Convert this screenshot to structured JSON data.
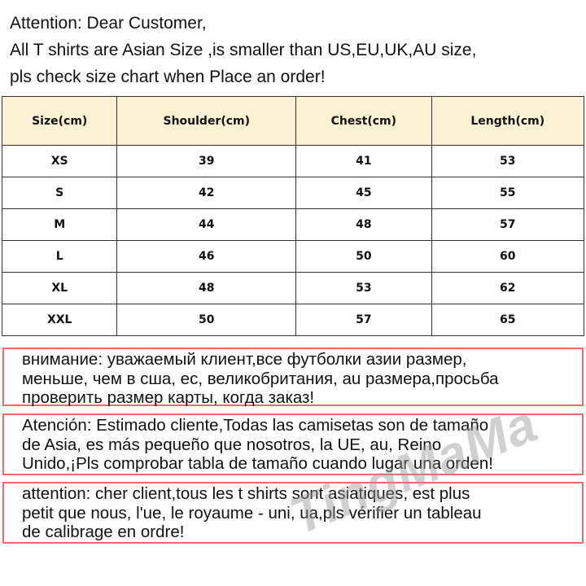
{
  "intro": {
    "lines": [
      "Attention: Dear Customer,",
      "All T shirts are  Asian Size ,is smaller than US,EU,UK,AU size,",
      "pls check size chart when Place an order!"
    ]
  },
  "table": {
    "headers": [
      "Size(cm)",
      "Shoulder(cm)",
      "Chest(cm)",
      "Length(cm)"
    ],
    "rows": [
      [
        "XS",
        "39",
        "41",
        "53"
      ],
      [
        "S",
        "42",
        "45",
        "55"
      ],
      [
        "M",
        "44",
        "48",
        "57"
      ],
      [
        "L",
        "46",
        "50",
        "60"
      ],
      [
        "XL",
        "48",
        "53",
        "62"
      ],
      [
        "XXL",
        "50",
        "57",
        "65"
      ]
    ],
    "header_color": "#fdf1d4"
  },
  "notes": [
    {
      "lines": [
        "внимание: уважаемый клиент,все футболки азии размер,",
        "меньше, чем в сша, ес, великобритания, au размера,просьба",
        "проверить размер карты, когда заказ!"
      ]
    },
    {
      "lines": [
        "Atención: Estimado cliente,Todas las camisetas son de tamaño",
        "de Asia, es más pequeño que nosotros, la UE, au, Reino",
        "Unido,¡Pls comprobar tabla de tamaño cuando lugar una orden!"
      ]
    },
    {
      "lines": [
        "attention: cher client,tous les t shirts sont asiatiques, est plus",
        "petit que nous, l'ue, le royaume - uni, ua,pls vérifier un tableau",
        "de calibrage en ordre!"
      ]
    }
  ],
  "note_border_color": "#f06a6a",
  "watermark": "TingMaMa"
}
